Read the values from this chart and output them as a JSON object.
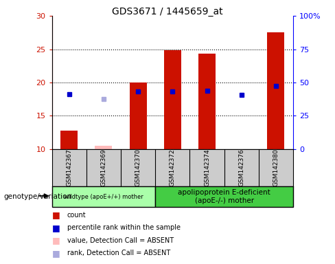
{
  "title": "GDS3671 / 1445659_at",
  "samples": [
    "GSM142367",
    "GSM142369",
    "GSM142370",
    "GSM142372",
    "GSM142374",
    "GSM142376",
    "GSM142380"
  ],
  "count_values": [
    12.8,
    null,
    20.0,
    24.8,
    24.3,
    null,
    27.5
  ],
  "count_absent": [
    null,
    10.5,
    null,
    null,
    null,
    null,
    null
  ],
  "rank_values": [
    41.0,
    null,
    43.5,
    43.5,
    44.0,
    40.5,
    47.5
  ],
  "rank_absent": [
    null,
    37.5,
    null,
    null,
    null,
    null,
    null
  ],
  "ylim_left": [
    10,
    30
  ],
  "ylim_right": [
    0,
    100
  ],
  "yticks_left": [
    10,
    15,
    20,
    25,
    30
  ],
  "yticks_right": [
    0,
    25,
    50,
    75,
    100
  ],
  "group1_label": "wildtype (apoE+/+) mother",
  "group2_label": "apolipoprotein E-deficient\n(apoE-/-) mother",
  "group1_indices": [
    0,
    1,
    2
  ],
  "group2_indices": [
    3,
    4,
    5,
    6
  ],
  "genotype_label": "genotype/variation",
  "color_count": "#cc1100",
  "color_count_absent": "#ffbbbb",
  "color_rank": "#0000cc",
  "color_rank_absent": "#aaaadd",
  "group1_bg": "#aaffaa",
  "group2_bg": "#44cc44",
  "tick_bg": "#cccccc",
  "legend_labels": [
    "count",
    "percentile rank within the sample",
    "value, Detection Call = ABSENT",
    "rank, Detection Call = ABSENT"
  ],
  "legend_colors": [
    "#cc1100",
    "#0000cc",
    "#ffbbbb",
    "#aaaadd"
  ]
}
